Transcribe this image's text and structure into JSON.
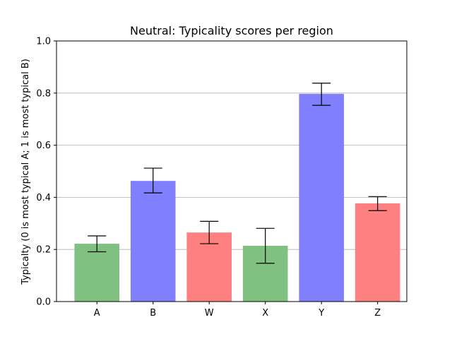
{
  "chart_data": {
    "type": "bar",
    "title": "Neutral: Typicality scores per region",
    "xlabel": "",
    "ylabel": "Typicalty (0 is most typical A; 1 is most typical B)",
    "categories": [
      "A",
      "B",
      "W",
      "X",
      "Y",
      "Z"
    ],
    "values": [
      0.222,
      0.463,
      0.265,
      0.214,
      0.797,
      0.377
    ],
    "error_low": [
      0.191,
      0.417,
      0.222,
      0.147,
      0.753,
      0.349
    ],
    "error_high": [
      0.252,
      0.512,
      0.308,
      0.281,
      0.838,
      0.403
    ],
    "colors": [
      "#80c080",
      "#8080ff",
      "#ff8080",
      "#80c080",
      "#8080ff",
      "#ff8080"
    ],
    "ylim": [
      0,
      1.0
    ],
    "yticks": [
      "0.0",
      "0.2",
      "0.4",
      "0.6",
      "0.8",
      "1.0"
    ],
    "grid": "horizontal",
    "grid_color": "#b0b0b0",
    "legend": "none"
  }
}
